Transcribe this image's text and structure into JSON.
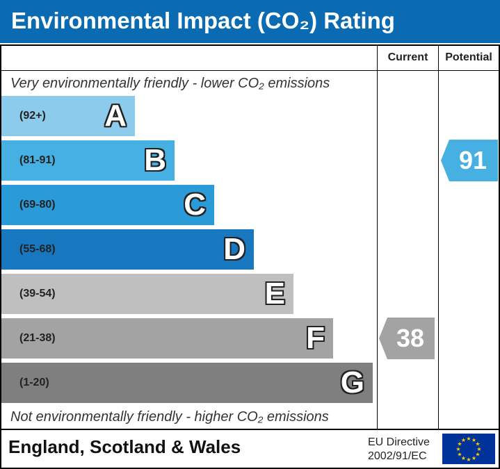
{
  "title": "Environmental Impact (CO₂) Rating",
  "columns": {
    "current": "Current",
    "potential": "Potential"
  },
  "note_top": "Very environmentally friendly - lower CO₂ emissions",
  "note_bottom": "Not environmentally friendly - higher CO₂ emissions",
  "footer": {
    "country": "England, Scotland & Wales",
    "directive_line1": "EU Directive",
    "directive_line2": "2002/91/EC",
    "flag_icon": "eu-flag-icon"
  },
  "chart_data": {
    "type": "bar",
    "title": "Environmental Impact (CO₂) Rating",
    "bands": [
      {
        "letter": "A",
        "range": "(92+)",
        "color": "#8ccbec"
      },
      {
        "letter": "B",
        "range": "(81-91)",
        "color": "#45b0e1"
      },
      {
        "letter": "C",
        "range": "(69-80)",
        "color": "#2a9ad8"
      },
      {
        "letter": "D",
        "range": "(55-68)",
        "color": "#1878bf"
      },
      {
        "letter": "E",
        "range": "(39-54)",
        "color": "#bfbfbf"
      },
      {
        "letter": "F",
        "range": "(21-38)",
        "color": "#a3a3a3"
      },
      {
        "letter": "G",
        "range": "(1-20)",
        "color": "#7f7f7f"
      }
    ],
    "current": {
      "value": 38,
      "band": "F",
      "color": "#a3a3a3"
    },
    "potential": {
      "value": 91,
      "band": "B",
      "color": "#45b0e1"
    }
  }
}
